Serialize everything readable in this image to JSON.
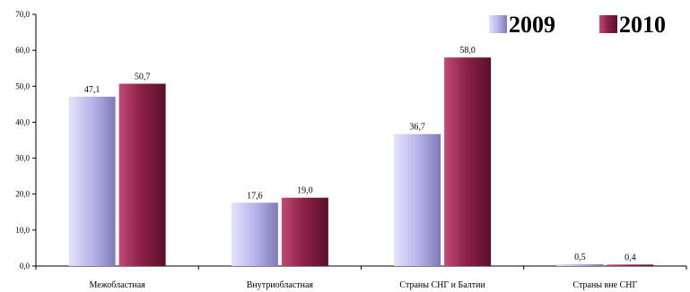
{
  "chart_data": {
    "type": "bar",
    "categories": [
      "Межобластная",
      "Внутриобластная",
      "Страны СНГ и Балтии",
      "Страны вне СНГ"
    ],
    "series": [
      {
        "name": "2009",
        "values": [
          47.1,
          17.6,
          36.7,
          0.5
        ],
        "labels": [
          "47,1",
          "17,6",
          "36,7",
          "0,5"
        ],
        "color": "#b8b4e8"
      },
      {
        "name": "2010",
        "values": [
          50.7,
          19.0,
          58.0,
          0.4
        ],
        "labels": [
          "50,7",
          "19,0",
          "58,0",
          "0,4"
        ],
        "color": "#8b1f45"
      }
    ],
    "ylim": [
      0,
      70
    ],
    "yticks": [
      0,
      10,
      20,
      30,
      40,
      50,
      60,
      70
    ],
    "ytick_labels": [
      "0,0",
      "10,0",
      "20,0",
      "30,0",
      "40,0",
      "50,0",
      "60,0",
      "70,0"
    ],
    "legend_position": "top-right",
    "grid": false
  }
}
